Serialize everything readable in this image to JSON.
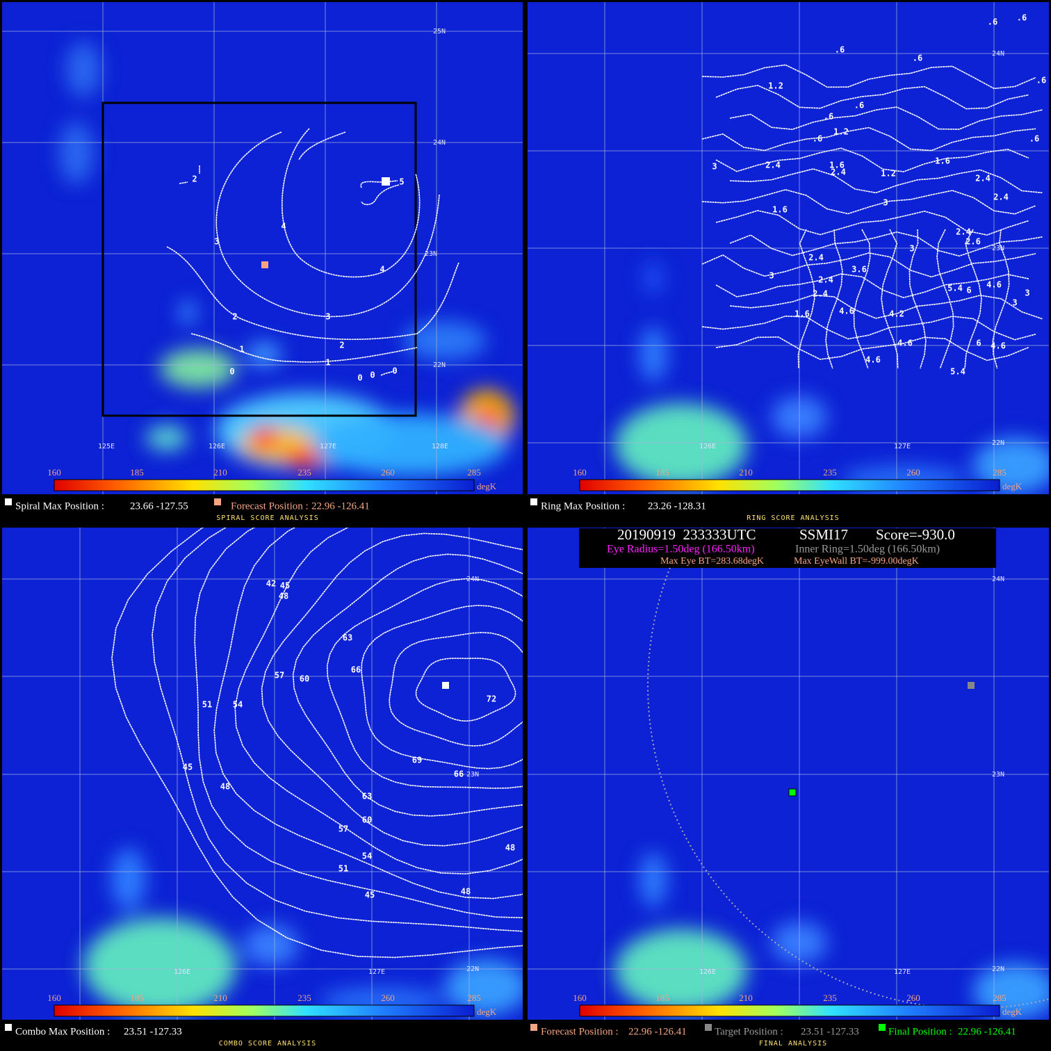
{
  "panels": [
    {
      "lat_labels": [
        "25N",
        "24N",
        "23N",
        "22N"
      ],
      "lon_labels": [
        "125E",
        "126E",
        "127E",
        "128E"
      ],
      "contour_labels": [
        "2",
        "5",
        "4",
        "3",
        "4",
        "2",
        "3",
        "2",
        "1",
        "1",
        "0",
        "0",
        "0",
        "0"
      ],
      "colorbar": {
        "ticks": [
          160,
          185,
          210,
          235,
          260,
          285
        ],
        "unit": "degK"
      },
      "footer": {
        "items": [
          {
            "label": "Spiral Max Position :",
            "value": "23.66 -127.55"
          },
          {
            "label": "Forecast Position :",
            "value": "22.96 -126.41"
          }
        ],
        "caption": "SPIRAL SCORE ANALYSIS"
      }
    },
    {
      "lat_labels": [
        "24N",
        "23N",
        "22N"
      ],
      "lon_labels": [
        "126E",
        "127E"
      ],
      "contour_labels": [
        ".6",
        ".6",
        ".6",
        ".6",
        ".6",
        "1.2",
        ".6",
        ".6",
        "1.2",
        ".6",
        ".6",
        "3",
        "2.4",
        "1.6",
        "2.4",
        "1.2",
        "1.6",
        "2.4",
        "2.4",
        "3",
        "1.6",
        "2.4",
        "2.6",
        "3",
        "2.4",
        "3.6",
        "3",
        "2.4",
        "4.6",
        "5.4",
        "6",
        "3",
        "2.4",
        "3",
        "1.6",
        "4.6",
        "4.2",
        "4.6",
        "6",
        "4.6",
        "4.6",
        "5.4"
      ],
      "colorbar": {
        "ticks": [
          160,
          185,
          210,
          235,
          260,
          285
        ],
        "unit": "degK"
      },
      "footer": {
        "items": [
          {
            "label": "Ring Max Position :",
            "value": "23.26 -128.31"
          }
        ],
        "caption": "RING SCORE ANALYSIS"
      }
    },
    {
      "lat_labels": [
        "24N",
        "23N",
        "22N"
      ],
      "lon_labels": [
        "126E",
        "127E"
      ],
      "contour_labels": [
        "42",
        "45",
        "48",
        "63",
        "66",
        "57",
        "60",
        "72",
        "51",
        "54",
        "69",
        "66",
        "45",
        "48",
        "63",
        "60",
        "57",
        "54",
        "48",
        "51",
        "45",
        "48"
      ],
      "colorbar": {
        "ticks": [
          160,
          185,
          210,
          235,
          260,
          285
        ],
        "unit": "degK"
      },
      "footer": {
        "items": [
          {
            "label": "Combo Max Position :",
            "value": "23.51 -127.33"
          }
        ],
        "caption": "COMBO SCORE ANALYSIS"
      }
    },
    {
      "lat_labels": [
        "24N",
        "23N",
        "22N"
      ],
      "lon_labels": [
        "126E",
        "127E"
      ],
      "header": {
        "date_time": "20190919  233333UTC",
        "sensor": "SSMI17",
        "score": "Score=-930.0",
        "eye_radius": "Eye Radius=1.50deg (166.50km)",
        "inner_ring": "Inner Ring=1.50deg (166.50km)",
        "max_eye_bt": "Max Eye BT=283.68degK",
        "max_eyewall_bt": "Max EyeWall BT=-999.00degK"
      },
      "colorbar": {
        "ticks": [
          160,
          185,
          210,
          235,
          260,
          285
        ],
        "unit": "degK"
      },
      "footer": {
        "items": [
          {
            "label": "Forecast Position :",
            "value": "22.96 -126.41"
          },
          {
            "label": "Target Position :",
            "value": "23.51 -127.33"
          },
          {
            "label": "Final Position :",
            "value": "22.96 -126.41"
          }
        ],
        "caption": "FINAL ANALYSIS"
      }
    }
  ]
}
